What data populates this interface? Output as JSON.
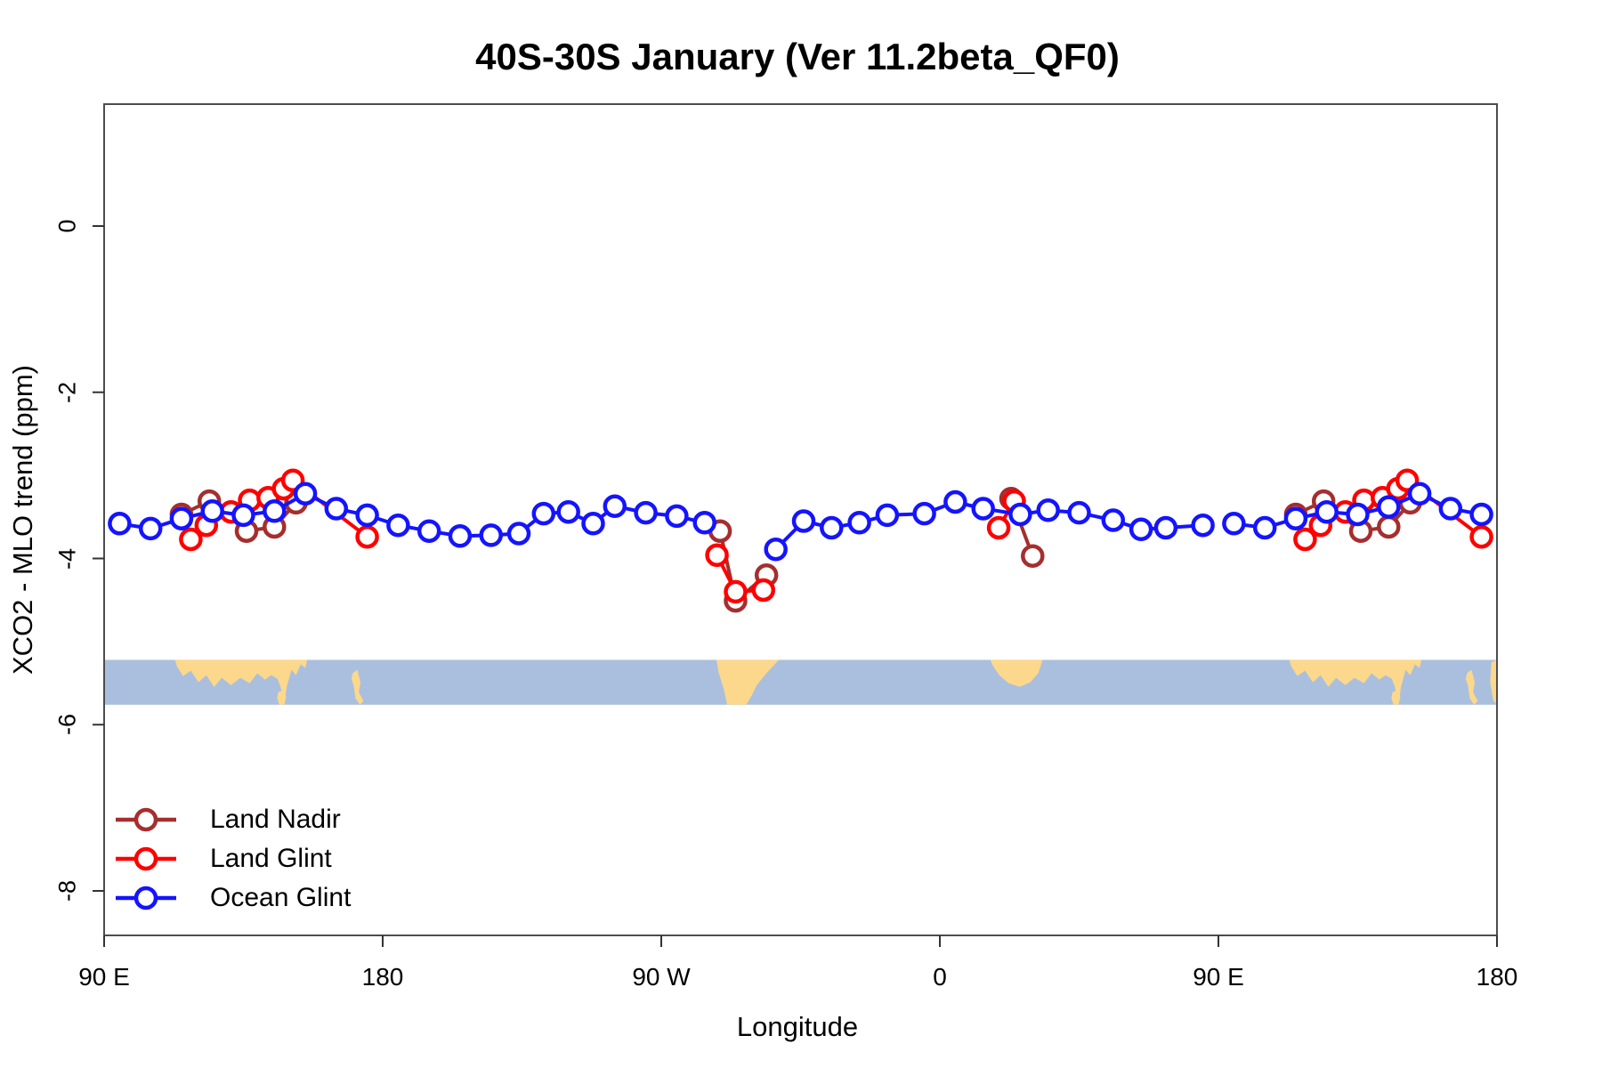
{
  "title": "40S-30S January (Ver 11.2beta_QF0)",
  "chart_data": {
    "type": "line",
    "title": "40S-30S January (Ver 11.2beta_QF0)",
    "xlabel": "Longitude",
    "ylabel": "XCO2 - MLO trend (ppm)",
    "x_axis": {
      "note": "longitude unwrapped eastward from 90E; 450 degrees total span",
      "range": [
        90,
        540
      ],
      "ticks": [
        {
          "deg": 90,
          "label": "90 E"
        },
        {
          "deg": 180,
          "label": "180"
        },
        {
          "deg": 270,
          "label": "90 W"
        },
        {
          "deg": 360,
          "label": "0"
        },
        {
          "deg": 450,
          "label": "90 E"
        },
        {
          "deg": 540,
          "label": "180"
        }
      ]
    },
    "y_axis": {
      "range": [
        -8.53,
        1.47
      ],
      "ticks": [
        {
          "value": 0,
          "label": "0"
        },
        {
          "value": -2,
          "label": "-2"
        },
        {
          "value": -4,
          "label": "-4"
        },
        {
          "value": -6,
          "label": "-6"
        },
        {
          "value": -8,
          "label": "-8"
        }
      ]
    },
    "series": [
      {
        "name": "Land Nadir",
        "color": "#A52E2E",
        "segments": [
          [
            [
              115,
              -3.47
            ],
            [
              124,
              -3.31
            ],
            [
              136,
              -3.67
            ],
            [
              145,
              -3.62
            ],
            [
              152,
              -3.33
            ]
          ],
          [
            [
              289,
              -3.67
            ],
            [
              294,
              -4.51
            ],
            [
              304,
              -4.2
            ]
          ],
          [
            [
              383,
              -3.28
            ],
            [
              390,
              -3.97
            ]
          ],
          [
            [
              475,
              -3.47
            ],
            [
              484,
              -3.31
            ],
            [
              496,
              -3.67
            ],
            [
              505,
              -3.62
            ],
            [
              512,
              -3.33
            ]
          ]
        ]
      },
      {
        "name": "Land Glint",
        "color": "#FF0000",
        "segments": [
          [
            [
              118,
              -3.77
            ],
            [
              123,
              -3.6
            ],
            [
              131,
              -3.44
            ],
            [
              137,
              -3.3
            ],
            [
              143,
              -3.27
            ],
            [
              148,
              -3.16
            ],
            [
              151,
              -3.06
            ],
            [
              175,
              -3.74
            ]
          ],
          [
            [
              288,
              -3.96
            ],
            [
              294,
              -4.4
            ],
            [
              303,
              -4.38
            ]
          ],
          [
            [
              379,
              -3.63
            ],
            [
              384,
              -3.31
            ]
          ],
          [
            [
              478,
              -3.77
            ],
            [
              483,
              -3.6
            ],
            [
              491,
              -3.44
            ],
            [
              497,
              -3.3
            ],
            [
              503,
              -3.27
            ],
            [
              508,
              -3.16
            ],
            [
              511,
              -3.06
            ],
            [
              535,
              -3.74
            ]
          ]
        ]
      },
      {
        "name": "Ocean Glint",
        "color": "#1414FF",
        "segments": [
          [
            [
              95,
              -3.58
            ],
            [
              105,
              -3.64
            ],
            [
              115,
              -3.52
            ],
            [
              125,
              -3.43
            ],
            [
              135,
              -3.48
            ],
            [
              145,
              -3.43
            ],
            [
              155,
              -3.22
            ],
            [
              165,
              -3.4
            ],
            [
              175,
              -3.48
            ],
            [
              185,
              -3.6
            ],
            [
              195,
              -3.67
            ],
            [
              205,
              -3.73
            ],
            [
              215,
              -3.72
            ],
            [
              224,
              -3.7
            ],
            [
              232,
              -3.46
            ],
            [
              240,
              -3.44
            ],
            [
              248,
              -3.58
            ],
            [
              255,
              -3.37
            ],
            [
              265,
              -3.45
            ],
            [
              275,
              -3.49
            ],
            [
              284,
              -3.57
            ]
          ],
          [
            [
              307,
              -3.89
            ],
            [
              316,
              -3.55
            ],
            [
              325,
              -3.63
            ],
            [
              334,
              -3.57
            ],
            [
              343,
              -3.48
            ],
            [
              355,
              -3.46
            ],
            [
              365,
              -3.32
            ],
            [
              374,
              -3.4
            ],
            [
              386,
              -3.47
            ],
            [
              395,
              -3.42
            ],
            [
              405,
              -3.45
            ],
            [
              416,
              -3.54
            ],
            [
              425,
              -3.65
            ],
            [
              433,
              -3.63
            ],
            [
              445,
              -3.6
            ]
          ],
          [
            [
              455,
              -3.58
            ],
            [
              465,
              -3.63
            ],
            [
              475,
              -3.52
            ],
            [
              485,
              -3.44
            ],
            [
              495,
              -3.47
            ],
            [
              505,
              -3.38
            ],
            [
              515,
              -3.22
            ],
            [
              525,
              -3.4
            ],
            [
              535,
              -3.47
            ]
          ]
        ]
      }
    ],
    "map_band": {
      "value_top": -5.22,
      "value_bottom": -5.76,
      "ocean_color": "#AABFDD",
      "land_color": "#FCD88C",
      "repeat_offset": 360,
      "lands": [
        {
          "name": "australia",
          "repeat": true,
          "points": [
            [
              112.9,
              0
            ],
            [
              155.6,
              0
            ],
            [
              155,
              0.18
            ],
            [
              153.5,
              0.1
            ],
            [
              152,
              0.34
            ],
            [
              150.5,
              0.22
            ],
            [
              149,
              0.6
            ],
            [
              148.2,
              0.98
            ],
            [
              147,
              0.6
            ],
            [
              146,
              0.42
            ],
            [
              144,
              0.34
            ],
            [
              142,
              0.44
            ],
            [
              139.5,
              0.3
            ],
            [
              137,
              0.52
            ],
            [
              134,
              0.4
            ],
            [
              131,
              0.56
            ],
            [
              128,
              0.4
            ],
            [
              125.5,
              0.6
            ],
            [
              123,
              0.34
            ],
            [
              120.5,
              0.5
            ],
            [
              118,
              0.24
            ],
            [
              115.5,
              0.36
            ],
            [
              113.5,
              0.14
            ]
          ]
        },
        {
          "name": "tasmania",
          "repeat": true,
          "points": [
            [
              146.2,
              0.72
            ],
            [
              147.8,
              0.68
            ],
            [
              148.8,
              0.82
            ],
            [
              148.2,
              1.0
            ],
            [
              146.6,
              1.0
            ],
            [
              145.9,
              0.86
            ]
          ]
        },
        {
          "name": "new-zealand",
          "repeat": true,
          "points": [
            [
              170.3,
              0.3
            ],
            [
              171.8,
              0.22
            ],
            [
              172.8,
              0.5
            ],
            [
              172.3,
              0.72
            ],
            [
              173.8,
              0.92
            ],
            [
              172.6,
              1.0
            ],
            [
              171.2,
              0.86
            ],
            [
              170.7,
              0.6
            ],
            [
              169.9,
              0.42
            ]
          ]
        },
        {
          "name": "south-america",
          "repeat": false,
          "points": [
            [
              287.8,
              0
            ],
            [
              308,
              0
            ],
            [
              304,
              0.3
            ],
            [
              301,
              0.55
            ],
            [
              299,
              0.82
            ],
            [
              297.5,
              1.0
            ],
            [
              291.3,
              1.0
            ],
            [
              290.2,
              0.66
            ],
            [
              288.6,
              0.3
            ]
          ]
        },
        {
          "name": "south-africa",
          "repeat": false,
          "points": [
            [
              376.3,
              0
            ],
            [
              393.2,
              0
            ],
            [
              391.8,
              0.3
            ],
            [
              389.2,
              0.5
            ],
            [
              385.8,
              0.6
            ],
            [
              382.2,
              0.52
            ],
            [
              379.2,
              0.34
            ],
            [
              377.2,
              0.14
            ]
          ]
        },
        {
          "name": "edge-sliver",
          "repeat": false,
          "points": [
            [
              538.2,
              0.06
            ],
            [
              540,
              0.0
            ],
            [
              540,
              1.0
            ],
            [
              538.8,
              0.9
            ],
            [
              537.8,
              0.5
            ]
          ]
        }
      ]
    }
  },
  "legend": {
    "items": [
      {
        "label": "Land Nadir",
        "color": "#A52E2E"
      },
      {
        "label": "Land Glint",
        "color": "#FF0000"
      },
      {
        "label": "Ocean Glint",
        "color": "#1414FF"
      }
    ]
  }
}
